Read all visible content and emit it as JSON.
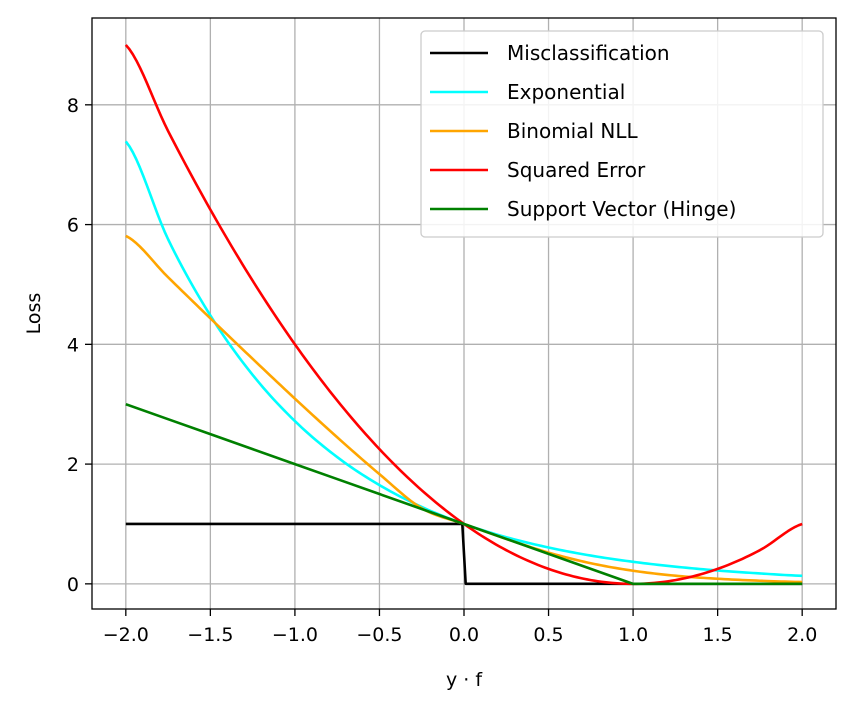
{
  "chart_data": {
    "type": "line",
    "title": "",
    "xlabel": "y · f",
    "ylabel": "Loss",
    "xlim": [
      -2.2,
      2.2
    ],
    "ylim": [
      -0.42,
      9.45
    ],
    "xticks": [
      -2.0,
      -1.5,
      -1.0,
      -0.5,
      0.0,
      0.5,
      1.0,
      1.5,
      2.0
    ],
    "xtick_labels": [
      "−2.0",
      "−1.5",
      "−1.0",
      "−0.5",
      "0.0",
      "0.5",
      "1.0",
      "1.5",
      "2.0"
    ],
    "yticks": [
      0,
      2,
      4,
      6,
      8
    ],
    "ytick_labels": [
      "0",
      "2",
      "4",
      "6",
      "8"
    ],
    "grid": true,
    "legend_position": "top-right",
    "x": [
      -2.0,
      -1.75,
      -1.5,
      -1.25,
      -1.0,
      -0.75,
      -0.5,
      -0.25,
      0.0,
      0.25,
      0.5,
      0.75,
      1.0,
      1.25,
      1.5,
      1.75,
      2.0
    ],
    "series": [
      {
        "name": "Misclassification",
        "color": "#000000",
        "points": [
          [
            -2.0,
            1
          ],
          [
            -0.01,
            1
          ],
          [
            0.01,
            0
          ],
          [
            2.0,
            0
          ]
        ]
      },
      {
        "name": "Exponential",
        "color": "#00ffff",
        "values": [
          7.389,
          5.755,
          4.482,
          3.49,
          2.718,
          2.117,
          1.649,
          1.284,
          1.0,
          0.779,
          0.607,
          0.472,
          0.368,
          0.287,
          0.223,
          0.174,
          0.135
        ]
      },
      {
        "name": "Binomial NLL",
        "color": "#ffa500",
        "values": [
          5.812,
          5.12,
          4.434,
          3.758,
          3.093,
          2.448,
          1.832,
          1.262,
          1.0,
          0.75,
          0.522,
          0.344,
          0.219,
          0.136,
          0.085,
          0.052,
          0.031
        ]
      },
      {
        "name": "Squared Error",
        "color": "#ff0000",
        "values": [
          9.0,
          7.5625,
          6.25,
          5.0625,
          4.0,
          3.0625,
          2.25,
          1.5625,
          1.0,
          0.5625,
          0.25,
          0.0625,
          0.0,
          0.0625,
          0.25,
          0.5625,
          1.0
        ]
      },
      {
        "name": "Support Vector (Hinge)",
        "color": "#008000",
        "values": [
          3.0,
          2.75,
          2.5,
          2.25,
          2.0,
          1.75,
          1.5,
          1.25,
          1.0,
          0.75,
          0.5,
          0.25,
          0.0,
          0.0,
          0.0,
          0.0,
          0.0
        ]
      }
    ]
  }
}
